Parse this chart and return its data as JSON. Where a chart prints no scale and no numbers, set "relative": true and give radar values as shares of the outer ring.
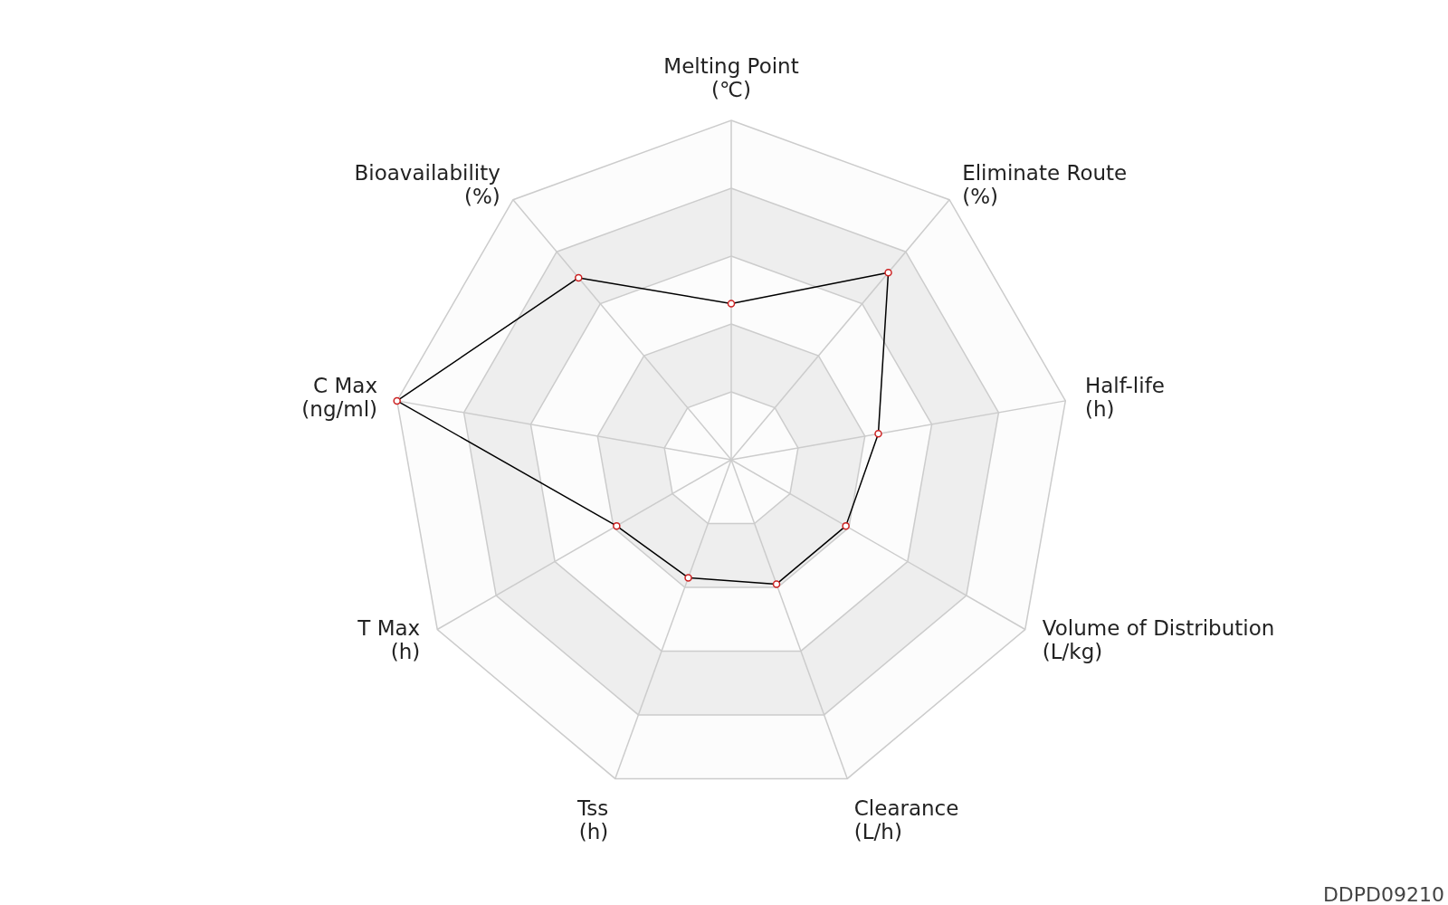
{
  "chart_data": {
    "type": "radar",
    "relative": true,
    "categories": [
      "Melting Point\n(℃)",
      "Eliminate Route\n(%)",
      "Half-life\n(h)",
      "Volume of Distribution\n(L/kg)",
      "Clearance\n(L/h)",
      "Tss\n(h)",
      "T Max\n(h)",
      "C Max\n(ng/ml)",
      "Bioavailability\n(%)"
    ],
    "series": [
      {
        "color": "#000000",
        "values": [
          0.46,
          0.72,
          0.44,
          0.39,
          0.39,
          0.37,
          0.39,
          1.0,
          0.7
        ]
      }
    ],
    "marker": "circle",
    "grid": true,
    "annotations": [
      "DDPD09210"
    ]
  }
}
